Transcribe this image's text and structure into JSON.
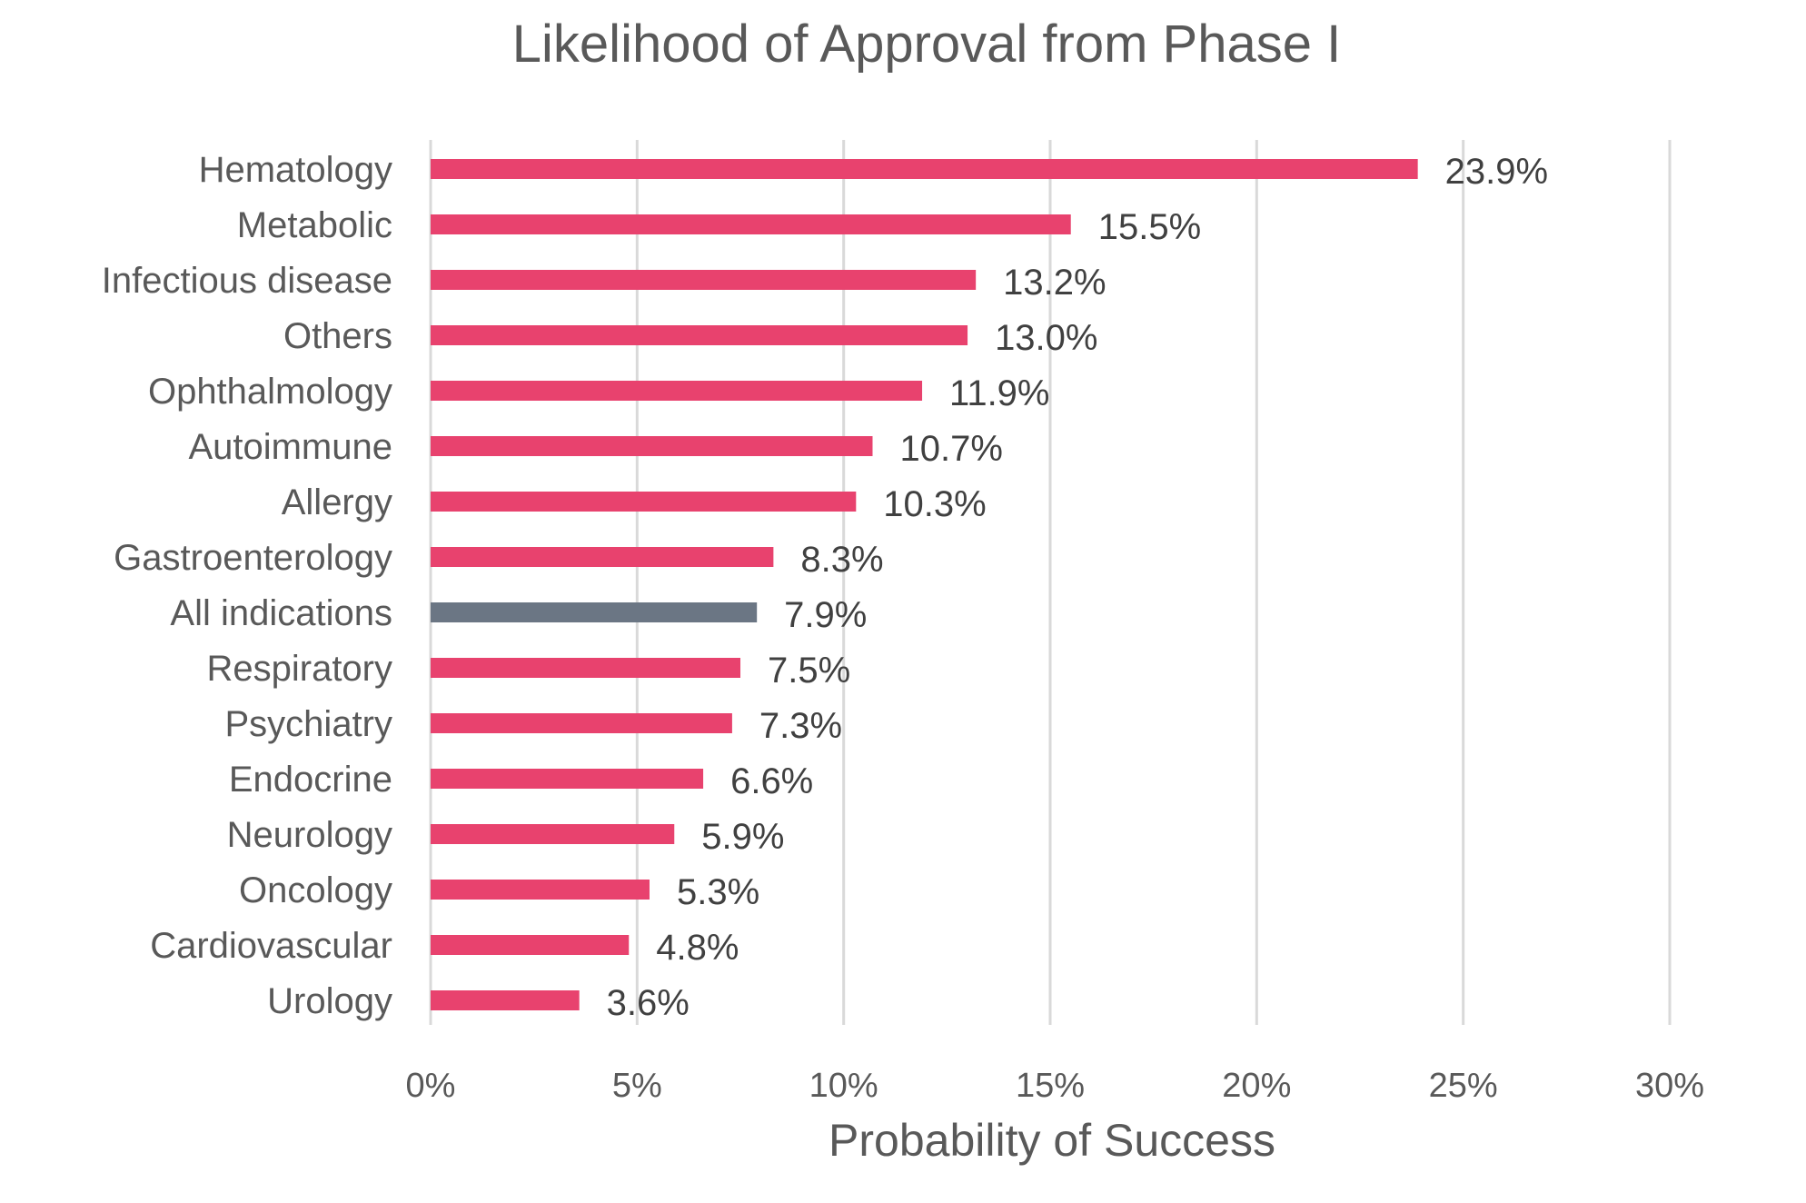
{
  "chart_data": {
    "type": "bar",
    "orientation": "horizontal",
    "title": "Likelihood of Approval from Phase I",
    "xlabel": "Probability of Success",
    "ylabel": "",
    "xlim": [
      0,
      30
    ],
    "x_ticks": [
      0,
      5,
      10,
      15,
      20,
      25,
      30
    ],
    "x_tick_labels": [
      "0%",
      "5%",
      "10%",
      "15%",
      "20%",
      "25%",
      "30%"
    ],
    "grid": "vertical",
    "legend": "none",
    "categories": [
      "Hematology",
      "Metabolic",
      "Infectious disease",
      "Others",
      "Ophthalmology",
      "Autoimmune",
      "Allergy",
      "Gastroenterology",
      "All indications",
      "Respiratory",
      "Psychiatry",
      "Endocrine",
      "Neurology",
      "Oncology",
      "Cardiovascular",
      "Urology"
    ],
    "values": [
      23.9,
      15.5,
      13.2,
      13.0,
      11.9,
      10.7,
      10.3,
      8.3,
      7.9,
      7.5,
      7.3,
      6.6,
      5.9,
      5.3,
      4.8,
      3.6
    ],
    "data_labels": [
      "23.9%",
      "15.5%",
      "13.2%",
      "13.0%",
      "11.9%",
      "10.7%",
      "10.3%",
      "8.3%",
      "7.9%",
      "7.5%",
      "7.3%",
      "6.6%",
      "5.9%",
      "5.3%",
      "4.8%",
      "3.6%"
    ],
    "highlight_category": "All indications",
    "colors": {
      "bar": "#e8426e",
      "highlight": "#6b7684",
      "grid": "#d9d9d9",
      "text": "#595959",
      "label": "#404040",
      "title": "#595959"
    }
  }
}
